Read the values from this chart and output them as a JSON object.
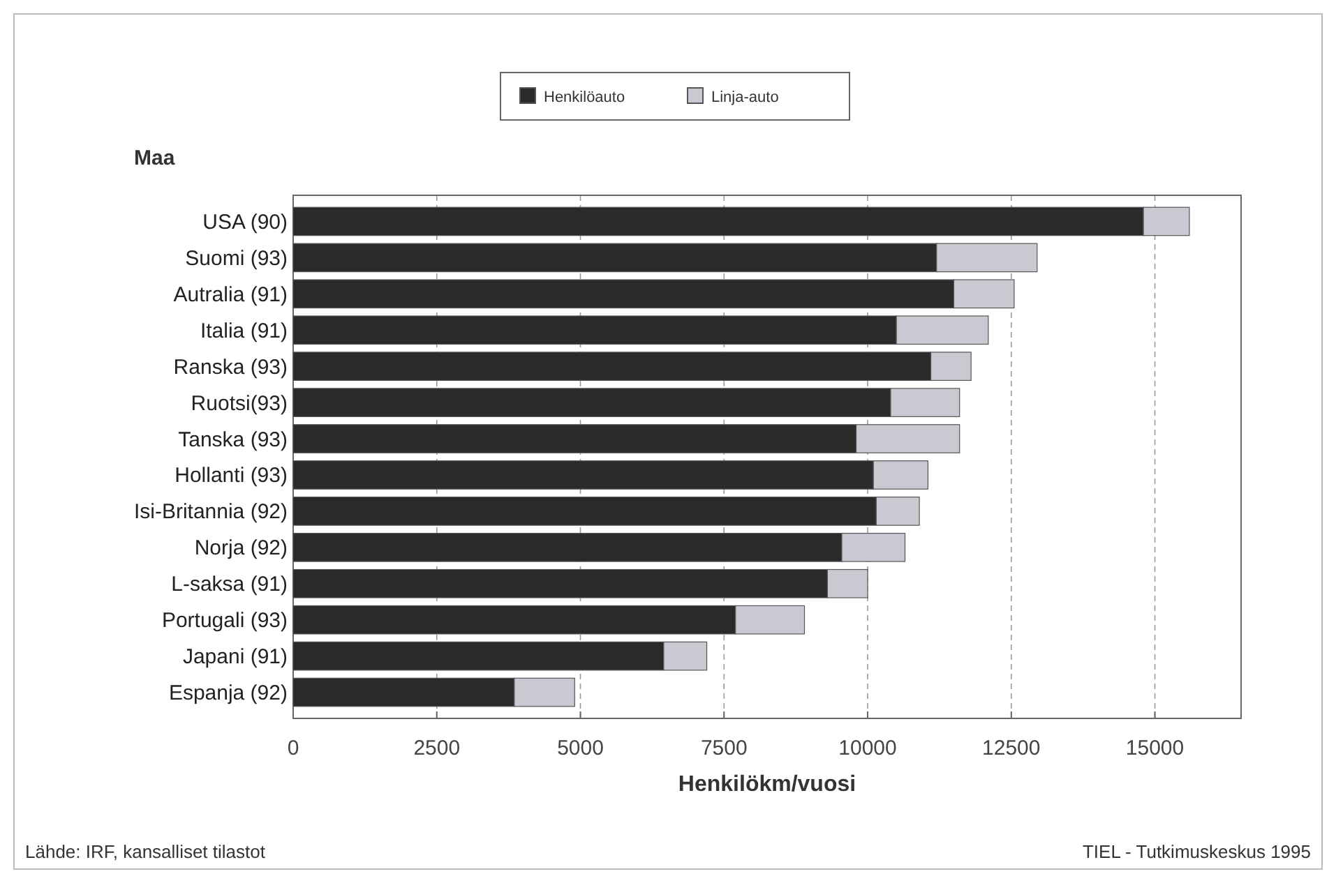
{
  "chart_data": {
    "type": "bar",
    "orientation": "horizontal",
    "stacked": true,
    "ylabel": "Maa",
    "xlabel": "Henkilökm/vuosi",
    "categories": [
      "USA (90)",
      "Suomi (93)",
      "Autralia (91)",
      "Italia (91)",
      "Ranska (93)",
      "Ruotsi(93)",
      "Tanska (93)",
      "Hollanti (93)",
      "Isi-Britannia (92)",
      "Norja (92)",
      "L-saksa (91)",
      "Portugali (93)",
      "Japani (91)",
      "Espanja (92)"
    ],
    "series": [
      {
        "name": "Henkilöauto",
        "color": "#2a2a2a",
        "values": [
          14800,
          11200,
          11500,
          10500,
          11100,
          10400,
          9800,
          10100,
          10150,
          9550,
          9300,
          7700,
          6450,
          3850
        ]
      },
      {
        "name": "Linja-auto",
        "color": "#c9c9d1",
        "values": [
          800,
          1750,
          1050,
          1600,
          700,
          1200,
          1800,
          950,
          750,
          1100,
          700,
          1200,
          750,
          1050
        ]
      }
    ],
    "xlim": [
      0,
      16500
    ],
    "xticks": [
      0,
      2500,
      5000,
      7500,
      10000,
      12500,
      15000
    ],
    "grid": "x",
    "legend": "top",
    "annotations": [
      "Lähde: IRF, kansalliset tilastot",
      "TIEL - Tutkimuskeskus 1995"
    ]
  }
}
